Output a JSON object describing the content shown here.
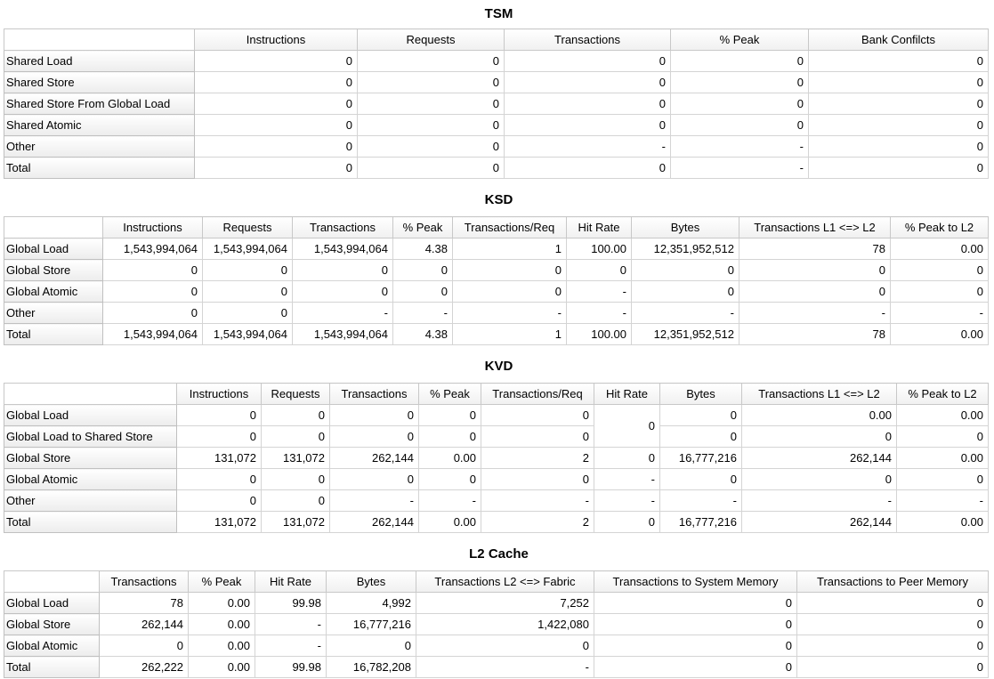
{
  "tables": [
    {
      "title": "TSM",
      "columns": [
        "Instructions",
        "Requests",
        "Transactions",
        "% Peak",
        "Bank Confilcts"
      ],
      "rows": [
        {
          "label": "Shared Load",
          "cells": [
            "0",
            "0",
            "0",
            "0",
            "0"
          ]
        },
        {
          "label": "Shared Store",
          "cells": [
            "0",
            "0",
            "0",
            "0",
            "0"
          ]
        },
        {
          "label": "Shared Store From Global Load",
          "cells": [
            "0",
            "0",
            "0",
            "0",
            "0"
          ]
        },
        {
          "label": "Shared Atomic",
          "cells": [
            "0",
            "0",
            "0",
            "0",
            "0"
          ]
        },
        {
          "label": "Other",
          "cells": [
            "0",
            "0",
            "-",
            "-",
            "0"
          ]
        },
        {
          "label": "Total",
          "cells": [
            "0",
            "0",
            "0",
            "-",
            "0"
          ]
        }
      ]
    },
    {
      "title": "KSD",
      "columns": [
        "Instructions",
        "Requests",
        "Transactions",
        "% Peak",
        "Transactions/Req",
        "Hit Rate",
        "Bytes",
        "Transactions L1 <=> L2",
        "% Peak to L2"
      ],
      "rows": [
        {
          "label": "Global Load",
          "cells": [
            "1,543,994,064",
            "1,543,994,064",
            "1,543,994,064",
            "4.38",
            "1",
            "100.00",
            "12,351,952,512",
            "78",
            "0.00"
          ]
        },
        {
          "label": "Global Store",
          "cells": [
            "0",
            "0",
            "0",
            "0",
            "0",
            "0",
            "0",
            "0",
            "0"
          ]
        },
        {
          "label": "Global Atomic",
          "cells": [
            "0",
            "0",
            "0",
            "0",
            "0",
            "-",
            "0",
            "0",
            "0"
          ]
        },
        {
          "label": "Other",
          "cells": [
            "0",
            "0",
            "-",
            "-",
            "-",
            "-",
            "-",
            "-",
            "-"
          ]
        },
        {
          "label": "Total",
          "cells": [
            "1,543,994,064",
            "1,543,994,064",
            "1,543,994,064",
            "4.38",
            "1",
            "100.00",
            "12,351,952,512",
            "78",
            "0.00"
          ]
        }
      ]
    },
    {
      "title": "KVD",
      "columns": [
        "Instructions",
        "Requests",
        "Transactions",
        "% Peak",
        "Transactions/Req",
        "Hit Rate",
        "Bytes",
        "Transactions L1 <=> L2",
        "% Peak to L2"
      ],
      "spans": [
        {
          "row": 0,
          "col": 5,
          "rows": 2
        }
      ],
      "rows": [
        {
          "label": "Global Load",
          "cells": [
            "0",
            "0",
            "0",
            "0",
            "0",
            "0",
            "0",
            "0.00",
            "0.00"
          ]
        },
        {
          "label": "Global Load to Shared Store",
          "cells": [
            "0",
            "0",
            "0",
            "0",
            "0",
            "0",
            "0",
            "0"
          ]
        },
        {
          "label": "Global Store",
          "cells": [
            "131,072",
            "131,072",
            "262,144",
            "0.00",
            "2",
            "0",
            "16,777,216",
            "262,144",
            "0.00"
          ]
        },
        {
          "label": "Global Atomic",
          "cells": [
            "0",
            "0",
            "0",
            "0",
            "0",
            "-",
            "0",
            "0",
            "0"
          ]
        },
        {
          "label": "Other",
          "cells": [
            "0",
            "0",
            "-",
            "-",
            "-",
            "-",
            "-",
            "-",
            "-"
          ]
        },
        {
          "label": "Total",
          "cells": [
            "131,072",
            "131,072",
            "262,144",
            "0.00",
            "2",
            "0",
            "16,777,216",
            "262,144",
            "0.00"
          ]
        }
      ]
    },
    {
      "title": "L2 Cache",
      "columns": [
        "Transactions",
        "% Peak",
        "Hit Rate",
        "Bytes",
        "Transactions L2 <=> Fabric",
        "Transactions to System Memory",
        "Transactions to Peer Memory"
      ],
      "rows": [
        {
          "label": "Global Load",
          "cells": [
            "78",
            "0.00",
            "99.98",
            "4,992",
            "7,252",
            "0",
            "0"
          ]
        },
        {
          "label": "Global Store",
          "cells": [
            "262,144",
            "0.00",
            "-",
            "16,777,216",
            "1,422,080",
            "0",
            "0"
          ]
        },
        {
          "label": "Global Atomic",
          "cells": [
            "0",
            "0.00",
            "-",
            "0",
            "0",
            "0",
            "0"
          ]
        },
        {
          "label": "Total",
          "cells": [
            "262,222",
            "0.00",
            "99.98",
            "16,782,208",
            "-",
            "0",
            "0"
          ]
        }
      ]
    }
  ]
}
